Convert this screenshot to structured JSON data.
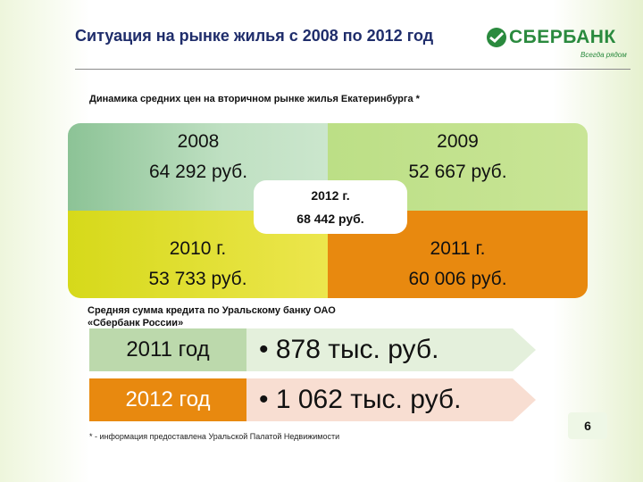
{
  "header": {
    "title": "Ситуация на рынке жилья с 2008 по 2012 год",
    "logo_text": "СБЕРБАНК",
    "logo_slogan": "Всегда рядом",
    "logo_color": "#2a8a3e"
  },
  "subtitle": "Динамика средних цен на вторичном рынке жилья Екатеринбурга *",
  "prices": {
    "top_left": {
      "year": "2008",
      "price": "64 292 руб.",
      "color": "#a9d3ae"
    },
    "top_right": {
      "year": "2009",
      "price": "52 667 руб.",
      "color": "#c3e28f"
    },
    "bottom_left": {
      "year": "2010 г.",
      "price": "53 733 руб.",
      "color": "#e3e02f"
    },
    "bottom_right": {
      "year": "2011 г.",
      "price": "60 006 руб.",
      "color": "#e8890f"
    },
    "center": {
      "year": "2012 г.",
      "price": "68 442 руб."
    }
  },
  "credit": {
    "title_line1": "Средняя сумма кредита по Уральскому банку ОАО",
    "title_line2": "«Сбербанк России»",
    "rows": [
      {
        "year": "2011 год",
        "amount": "• 878 тыс. руб.",
        "color": "#bcd9ac",
        "arrow_color": "#e4f0dc"
      },
      {
        "year": "2012 год",
        "amount": "• 1 062 тыс. руб.",
        "color": "#e8890f",
        "arrow_color": "#f8ded2"
      }
    ]
  },
  "footnote": "* - информация предоставлена Уральской Палатой Недвижимости",
  "page_number": "6"
}
